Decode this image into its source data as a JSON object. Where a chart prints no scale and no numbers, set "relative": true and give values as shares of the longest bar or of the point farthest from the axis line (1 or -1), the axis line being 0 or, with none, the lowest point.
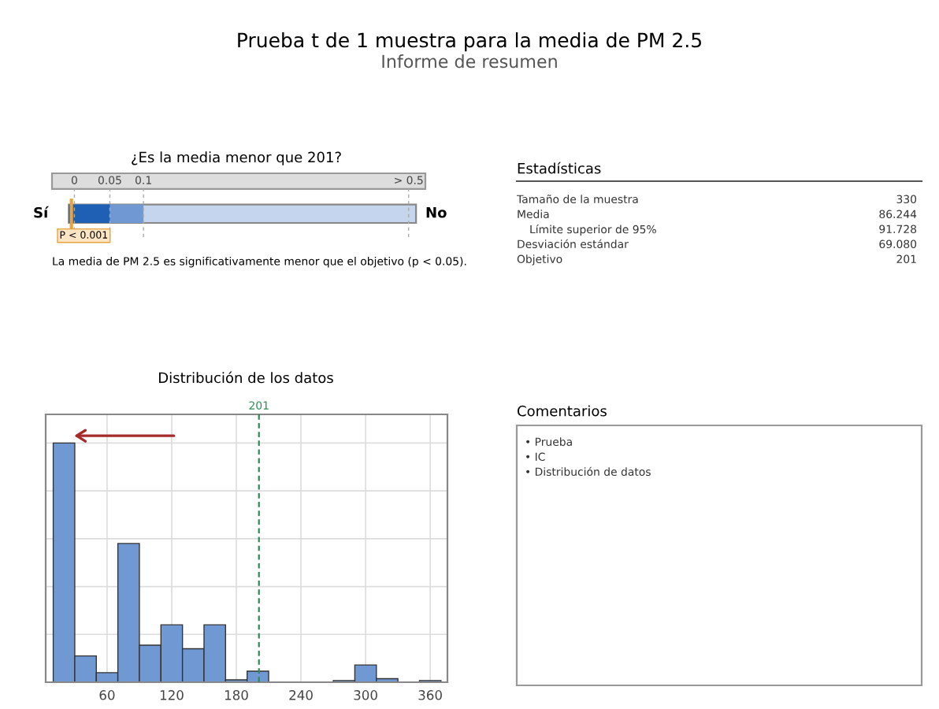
{
  "chart_data": {
    "type": "bar",
    "title": "Prueba t de 1 muestra para la media de PM 2.5",
    "subtitle": "Informe de resumen",
    "x": [
      20,
      40,
      60,
      80,
      100,
      120,
      140,
      160,
      180,
      200,
      220,
      240,
      260,
      280,
      300,
      320,
      340,
      360
    ],
    "values": [
      1.0,
      0.11,
      0.04,
      0.58,
      0.155,
      0.24,
      0.14,
      0.24,
      0.01,
      0.046,
      0,
      0,
      0,
      0.007,
      0.072,
      0.015,
      0,
      0.007
    ],
    "relative": true,
    "color": "#7099d4",
    "xlim": [
      3,
      376
    ],
    "xticks": [
      60,
      120,
      180,
      240,
      300,
      360
    ],
    "grid": true,
    "ref_lines": [
      {
        "axis": "x",
        "value": 201,
        "label": "201",
        "color": "#2e8b57",
        "line_style": "dashed"
      }
    ],
    "annotations": [
      "¿Es la media menor que 201?",
      "0",
      "0.05",
      "0.1",
      "> 0.5",
      "Sí",
      "No",
      "P < 0.001",
      "La media de PM 2.5 es significativamente menor que el objetivo (p < 0.05).",
      "Estadísticas",
      "Tamaño de la muestra",
      "330",
      "Media",
      "86.244",
      "Límite superior de 95%",
      "91.728",
      "Desviación estándar",
      "69.080",
      "Objetivo",
      "201",
      "Distribución de los datos",
      "Comentarios",
      "• Prueba",
      "• IC",
      "• Distribución de datos"
    ]
  }
}
